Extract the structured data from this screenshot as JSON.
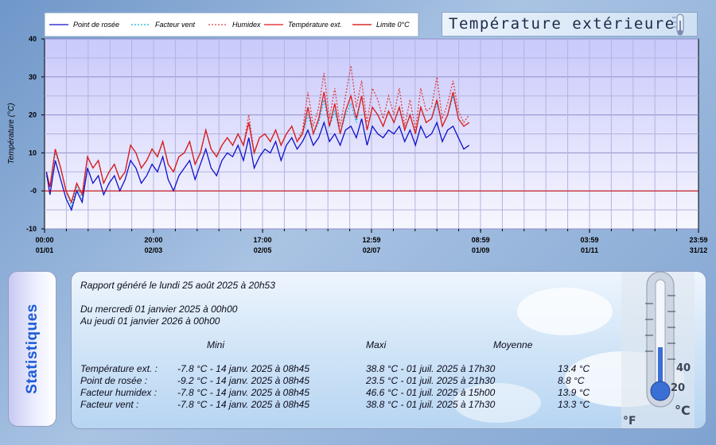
{
  "chart_data": {
    "type": "line",
    "title": "Température extérieure",
    "ylabel": "Température (°C)",
    "ylim": [
      -10,
      40
    ],
    "y_ticks": [
      "40",
      "30",
      "20",
      "10",
      "-0",
      "-10"
    ],
    "x_ticks": [
      {
        "time": "00:00",
        "date": "01/01",
        "day": 0
      },
      {
        "time": "20:00",
        "date": "02/03",
        "day": 60.8
      },
      {
        "time": "17:00",
        "date": "02/05",
        "day": 121.7
      },
      {
        "time": "12:59",
        "date": "02/07",
        "day": 182.5
      },
      {
        "time": "08:59",
        "date": "01/09",
        "day": 243.4
      },
      {
        "time": "03:59",
        "date": "01/11",
        "day": 304.2
      },
      {
        "time": "23:59",
        "date": "31/12",
        "day": 365
      }
    ],
    "grid": true,
    "legend": "top-left",
    "x_range_days": [
      0,
      365
    ],
    "series": [
      {
        "name": "Point de rosée",
        "color": "#1010c8",
        "style": "solid",
        "x": [
          1,
          3,
          6,
          9,
          12,
          15,
          18,
          21,
          24,
          27,
          30,
          33,
          36,
          39,
          42,
          45,
          48,
          51,
          54,
          57,
          60,
          63,
          66,
          69,
          72,
          75,
          78,
          81,
          84,
          87,
          90,
          93,
          96,
          99,
          102,
          105,
          108,
          111,
          114,
          117,
          120,
          123,
          126,
          129,
          132,
          135,
          138,
          141,
          144,
          147,
          150,
          153,
          156,
          159,
          162,
          165,
          168,
          171,
          174,
          177,
          180,
          183,
          186,
          189,
          192,
          195,
          198,
          201,
          204,
          207,
          210,
          213,
          216,
          219,
          222,
          225,
          228,
          231,
          234,
          237
        ],
        "values": [
          5,
          -1,
          8,
          3,
          -2,
          -5,
          0,
          -3,
          6,
          2,
          4,
          -1,
          2,
          4,
          0,
          3,
          8,
          6,
          2,
          4,
          7,
          5,
          9,
          3,
          0,
          4,
          6,
          8,
          3,
          7,
          11,
          6,
          4,
          8,
          10,
          9,
          12,
          8,
          14,
          6,
          9,
          11,
          10,
          13,
          8,
          12,
          14,
          11,
          13,
          16,
          12,
          14,
          18,
          13,
          15,
          12,
          16,
          17,
          14,
          19,
          12,
          17,
          15,
          14,
          16,
          15,
          17,
          13,
          16,
          12,
          17,
          14,
          15,
          18,
          13,
          16,
          17,
          14,
          11,
          12
        ]
      },
      {
        "name": "Facteur vent",
        "color": "#10b8e0",
        "style": "dotted",
        "x": [
          1,
          3,
          6,
          9,
          12,
          15,
          18,
          21,
          24,
          27,
          30,
          33,
          36,
          39,
          42,
          45,
          48,
          51,
          54,
          57,
          60,
          63,
          66,
          69,
          72,
          75,
          78,
          81,
          84,
          87,
          90,
          93,
          96,
          99,
          102,
          105,
          108,
          111,
          114,
          117,
          120,
          123,
          126,
          129,
          132,
          135,
          138,
          141,
          144,
          147,
          150,
          153,
          156,
          159,
          162,
          165,
          168,
          171,
          174,
          177,
          180,
          183,
          186,
          189,
          192,
          195,
          198,
          201,
          204,
          207,
          210,
          213,
          216,
          219,
          222,
          225,
          228,
          231,
          234,
          237
        ],
        "values": [
          4,
          1,
          10,
          6,
          0,
          -4,
          1,
          -2,
          9,
          6,
          8,
          2,
          5,
          7,
          3,
          5,
          12,
          10,
          6,
          8,
          11,
          9,
          13,
          7,
          5,
          9,
          10,
          13,
          7,
          10,
          16,
          11,
          9,
          12,
          14,
          12,
          15,
          12,
          18,
          10,
          14,
          15,
          13,
          16,
          12,
          15,
          17,
          13,
          15,
          20,
          15,
          18,
          24,
          17,
          21,
          15,
          20,
          23,
          18,
          25,
          16,
          22,
          20,
          17,
          21,
          18,
          22,
          16,
          20,
          15,
          22,
          18,
          19,
          23,
          17,
          20,
          25,
          19,
          17,
          18
        ]
      },
      {
        "name": "Humidex",
        "color": "#e04040",
        "style": "dotted",
        "x": [
          1,
          3,
          6,
          9,
          12,
          15,
          18,
          21,
          24,
          27,
          30,
          33,
          36,
          39,
          42,
          45,
          48,
          51,
          54,
          57,
          60,
          63,
          66,
          69,
          72,
          75,
          78,
          81,
          84,
          87,
          90,
          93,
          96,
          99,
          102,
          105,
          108,
          111,
          114,
          117,
          120,
          123,
          126,
          129,
          132,
          135,
          138,
          141,
          144,
          147,
          150,
          153,
          156,
          159,
          162,
          165,
          168,
          171,
          174,
          177,
          180,
          183,
          186,
          189,
          192,
          195,
          198,
          201,
          204,
          207,
          210,
          213,
          216,
          219,
          222,
          225,
          228,
          231,
          234,
          237
        ],
        "values": [
          5,
          1,
          11,
          6,
          0,
          -3,
          2,
          -1,
          9,
          6,
          8,
          2,
          5,
          7,
          3,
          5,
          12,
          10,
          6,
          8,
          11,
          9,
          13,
          7,
          5,
          9,
          10,
          13,
          7,
          10,
          16,
          11,
          9,
          12,
          14,
          12,
          15,
          12,
          20,
          10,
          14,
          15,
          13,
          16,
          12,
          15,
          17,
          13,
          16,
          26,
          17,
          22,
          31,
          19,
          27,
          17,
          25,
          33,
          22,
          29,
          18,
          27,
          24,
          19,
          25,
          20,
          27,
          17,
          24,
          16,
          27,
          21,
          22,
          30,
          19,
          23,
          29,
          21,
          18,
          20
        ]
      },
      {
        "name": "Température ext.",
        "color": "#e01818",
        "style": "solid",
        "x": [
          1,
          3,
          6,
          9,
          12,
          15,
          18,
          21,
          24,
          27,
          30,
          33,
          36,
          39,
          42,
          45,
          48,
          51,
          54,
          57,
          60,
          63,
          66,
          69,
          72,
          75,
          78,
          81,
          84,
          87,
          90,
          93,
          96,
          99,
          102,
          105,
          108,
          111,
          114,
          117,
          120,
          123,
          126,
          129,
          132,
          135,
          138,
          141,
          144,
          147,
          150,
          153,
          156,
          159,
          162,
          165,
          168,
          171,
          174,
          177,
          180,
          183,
          186,
          189,
          192,
          195,
          198,
          201,
          204,
          207,
          210,
          213,
          216,
          219,
          222,
          225,
          228,
          231,
          234,
          237
        ],
        "values": [
          5,
          1,
          11,
          6,
          0,
          -3,
          2,
          -1,
          9,
          6,
          8,
          2,
          5,
          7,
          3,
          5,
          12,
          10,
          6,
          8,
          11,
          9,
          13,
          7,
          5,
          9,
          10,
          13,
          7,
          10,
          16,
          11,
          9,
          12,
          14,
          12,
          15,
          12,
          18,
          10,
          14,
          15,
          13,
          16,
          12,
          15,
          17,
          13,
          15,
          22,
          15,
          19,
          26,
          17,
          23,
          15,
          21,
          25,
          19,
          25,
          16,
          22,
          20,
          17,
          21,
          18,
          22,
          16,
          20,
          15,
          22,
          18,
          19,
          24,
          17,
          20,
          26,
          19,
          17,
          18
        ]
      },
      {
        "name": "Limite 0°C",
        "color": "#d00000",
        "style": "solid",
        "x": [
          0,
          365
        ],
        "values": [
          0,
          0
        ]
      }
    ]
  },
  "stats": {
    "side_label": "Statistiques",
    "report_line": "Rapport généré le lundi 25 août 2025 à 20h53",
    "from_line": "Du mercredi 01 janvier 2025 à 00h00",
    "to_line": "Au jeudi 01 janvier 2026 à 00h00",
    "headers": {
      "mini": "Mini",
      "maxi": "Maxi",
      "moyenne": "Moyenne"
    },
    "rows": [
      {
        "label": "Température ext. :",
        "mini": "-7.8 °C - 14 janv. 2025 à 08h45",
        "maxi": "38.8 °C - 01 juil. 2025 à 17h30",
        "moy": "13.4 °C"
      },
      {
        "label": "Point de rosée :",
        "mini": "-9.2 °C - 14 janv. 2025 à 08h45",
        "maxi": "23.5 °C - 01 juil. 2025 à 21h30",
        "moy": "8.8 °C"
      },
      {
        "label": "Facteur humidex :",
        "mini": "-7.8 °C - 14 janv. 2025 à 08h45",
        "maxi": "46.6 °C - 01 juil. 2025 à 15h00",
        "moy": "13.9 °C"
      },
      {
        "label": "Facteur vent :",
        "mini": "-7.8 °C - 14 janv. 2025 à 08h45",
        "maxi": "38.8 °C - 01 juil. 2025 à 17h30",
        "moy": "13.3 °C"
      }
    ],
    "thermo_scale": [
      "40",
      "20",
      "°F",
      "°C"
    ]
  },
  "colors": {
    "plot_top": "#cfcffc",
    "plot_bottom": "#f6f6ff",
    "axis": "#000000"
  }
}
